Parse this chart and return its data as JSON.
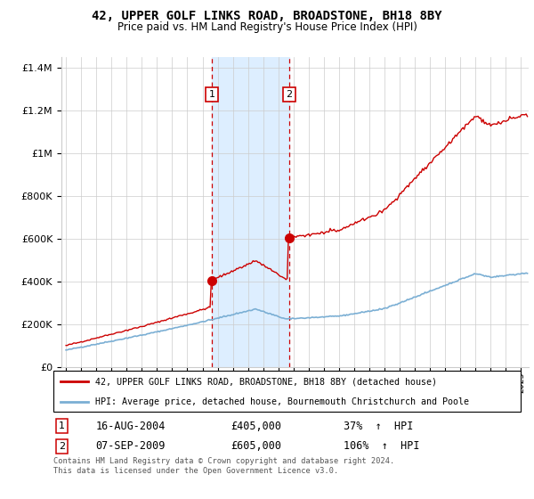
{
  "title": "42, UPPER GOLF LINKS ROAD, BROADSTONE, BH18 8BY",
  "subtitle": "Price paid vs. HM Land Registry's House Price Index (HPI)",
  "legend_line1": "42, UPPER GOLF LINKS ROAD, BROADSTONE, BH18 8BY (detached house)",
  "legend_line2": "HPI: Average price, detached house, Bournemouth Christchurch and Poole",
  "footer": "Contains HM Land Registry data © Crown copyright and database right 2024.\nThis data is licensed under the Open Government Licence v3.0.",
  "sale1_date": "16-AUG-2004",
  "sale1_price": 405000,
  "sale1_label": "37%  ↑  HPI",
  "sale2_date": "07-SEP-2009",
  "sale2_price": 605000,
  "sale2_label": "106%  ↑  HPI",
  "sale1_year": 2004.625,
  "sale2_year": 2009.708,
  "red_color": "#cc0000",
  "blue_color": "#7bafd4",
  "shade_color": "#ddeeff",
  "grid_color": "#cccccc",
  "ylim_max": 1450000,
  "xlim_left": 1994.7,
  "xlim_right": 2025.5
}
